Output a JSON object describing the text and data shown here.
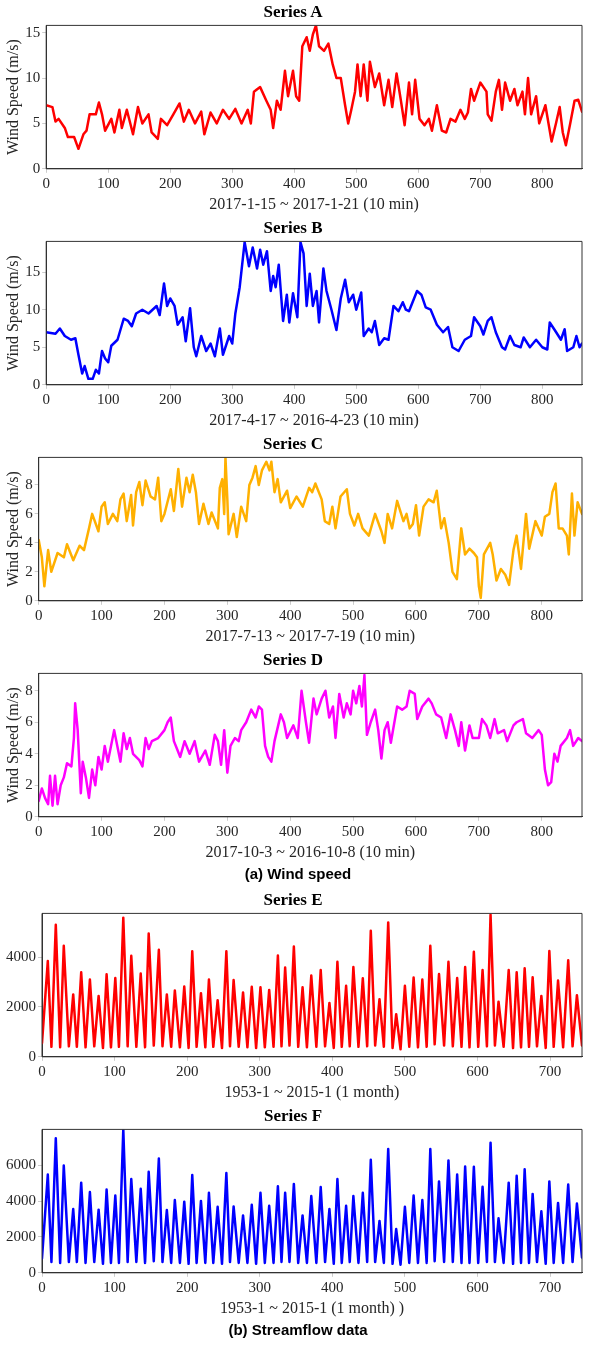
{
  "chart_data": [
    {
      "type": "line",
      "title": "Series A",
      "xlabel": "2017-1-15 ~ 2017-1-21 (10 min)",
      "ylabel": "Wind Speed (m/s)",
      "xlim": [
        0,
        864
      ],
      "xticks": [
        0,
        100,
        200,
        300,
        400,
        500,
        600,
        700,
        800
      ],
      "ylim": [
        0,
        15.8
      ],
      "yticks": [
        0,
        5,
        10,
        15
      ],
      "x": [
        0,
        10,
        15,
        20,
        30,
        35,
        45,
        52,
        60,
        65,
        70,
        80,
        85,
        90,
        95,
        105,
        110,
        118,
        122,
        130,
        140,
        148,
        155,
        165,
        170,
        180,
        185,
        195,
        205,
        215,
        222,
        230,
        240,
        250,
        255,
        265,
        275,
        285,
        295,
        305,
        315,
        325,
        330,
        335,
        345,
        355,
        362,
        366,
        372,
        378,
        385,
        390,
        398,
        403,
        408,
        413,
        420,
        425,
        430,
        435,
        440,
        448,
        455,
        462,
        468,
        475,
        482,
        487,
        492,
        498,
        502,
        507,
        512,
        518,
        522,
        530,
        537,
        545,
        552,
        558,
        565,
        572,
        578,
        585,
        590,
        595,
        602,
        610,
        617,
        622,
        630,
        638,
        645,
        652,
        660,
        668,
        675,
        680,
        685,
        690,
        700,
        710,
        712,
        718,
        725,
        730,
        735,
        740,
        748,
        755,
        760,
        768,
        772,
        777,
        782,
        790,
        795,
        805,
        810,
        815,
        822,
        828,
        833,
        838,
        845,
        852,
        858,
        864
      ],
      "series": [
        {
          "color": "#ff0000",
          "values": [
            7.0,
            6.8,
            5.2,
            5.5,
            4.5,
            3.5,
            3.5,
            2.2,
            3.8,
            4.2,
            6.0,
            6.0,
            7.3,
            6.0,
            4.2,
            5.5,
            4.0,
            6.5,
            4.5,
            6.5,
            3.8,
            6.8,
            5.0,
            6.0,
            4.0,
            3.3,
            5.5,
            4.8,
            6.0,
            7.2,
            5.2,
            6.5,
            5.0,
            6.3,
            3.8,
            6.2,
            5.0,
            6.5,
            5.5,
            6.6,
            5.0,
            6.5,
            5.0,
            8.5,
            9.0,
            7.5,
            6.5,
            4.5,
            7.5,
            6.5,
            10.8,
            8.0,
            10.8,
            8.0,
            7.5,
            13.5,
            14.5,
            13.0,
            14.8,
            15.8,
            13.5,
            13.0,
            13.8,
            11.5,
            10.0,
            10.0,
            7.0,
            5.0,
            6.5,
            8.5,
            11.5,
            8.0,
            11.5,
            7.5,
            11.8,
            9.0,
            10.5,
            7.0,
            9.8,
            6.8,
            10.5,
            7.5,
            4.8,
            9.5,
            6.0,
            9.8,
            5.5,
            4.8,
            5.5,
            4.2,
            7.0,
            4.2,
            4.0,
            5.5,
            5.2,
            6.5,
            5.5,
            6.2,
            8.8,
            7.5,
            9.5,
            8.5,
            6.0,
            5.3,
            8.5,
            9.8,
            6.5,
            9.5,
            7.5,
            8.8,
            7.0,
            8.5,
            6.0,
            10.0,
            6.0,
            8.0,
            5.0,
            7.0,
            5.0,
            3.0,
            5.0,
            6.8,
            4.0,
            2.6,
            5.0,
            7.5,
            7.6,
            6.3
          ]
        }
      ]
    },
    {
      "type": "line",
      "title": "Series B",
      "xlabel": "2017-4-17 ~ 2016-4-23 (10 min)",
      "ylabel": "Wind Speed (m/s)",
      "xlim": [
        0,
        864
      ],
      "xticks": [
        0,
        100,
        200,
        300,
        400,
        500,
        600,
        700,
        800
      ],
      "ylim": [
        0,
        19.1
      ],
      "yticks": [
        0,
        5,
        10,
        15
      ],
      "x": [
        0,
        15,
        22,
        30,
        40,
        47,
        52,
        58,
        62,
        68,
        75,
        80,
        85,
        90,
        95,
        100,
        105,
        115,
        125,
        132,
        138,
        145,
        155,
        165,
        178,
        183,
        190,
        195,
        200,
        207,
        212,
        220,
        225,
        232,
        238,
        242,
        250,
        258,
        265,
        272,
        280,
        285,
        295,
        300,
        305,
        312,
        320,
        327,
        333,
        340,
        345,
        350,
        356,
        362,
        366,
        370,
        375,
        382,
        388,
        392,
        398,
        405,
        410,
        415,
        420,
        425,
        430,
        436,
        440,
        447,
        452,
        460,
        468,
        475,
        482,
        488,
        495,
        500,
        508,
        512,
        520,
        525,
        530,
        537,
        545,
        552,
        560,
        568,
        575,
        580,
        585,
        598,
        605,
        612,
        620,
        630,
        640,
        648,
        655,
        665,
        675,
        685,
        690,
        700,
        705,
        712,
        718,
        725,
        735,
        740,
        748,
        755,
        765,
        770,
        780,
        790,
        800,
        808,
        812,
        820,
        830,
        836,
        840,
        850,
        855,
        860,
        864
      ],
      "series": [
        {
          "color": "#0000ff",
          "values": [
            7.0,
            6.8,
            7.5,
            6.5,
            6.0,
            6.2,
            4.0,
            1.5,
            2.5,
            0.8,
            0.8,
            2.0,
            1.5,
            4.5,
            3.5,
            3.0,
            5.2,
            6.0,
            8.8,
            8.5,
            7.8,
            9.5,
            10.0,
            9.5,
            10.5,
            9.3,
            13.5,
            10.5,
            11.5,
            10.5,
            8.0,
            9.0,
            5.8,
            10.2,
            5.0,
            3.8,
            6.5,
            4.5,
            5.5,
            3.8,
            7.5,
            4.0,
            6.5,
            5.5,
            9.5,
            13.0,
            19.0,
            15.8,
            18.3,
            15.5,
            18.0,
            16.0,
            17.8,
            12.5,
            14.5,
            13.0,
            16.0,
            8.5,
            12.0,
            8.3,
            12.2,
            9.0,
            19.0,
            17.5,
            10.5,
            14.8,
            10.5,
            12.5,
            8.3,
            15.5,
            12.5,
            10.0,
            7.3,
            11.5,
            14.0,
            11.0,
            12.0,
            10.0,
            12.3,
            6.5,
            7.5,
            7.0,
            8.5,
            5.3,
            6.2,
            6.0,
            10.5,
            9.8,
            11.0,
            10.0,
            9.8,
            12.5,
            12.0,
            10.3,
            10.0,
            8.0,
            7.0,
            7.7,
            5.0,
            4.5,
            6.0,
            6.5,
            9.0,
            7.8,
            6.7,
            8.5,
            9.0,
            7.0,
            5.0,
            4.7,
            6.5,
            5.3,
            5.0,
            6.3,
            5.0,
            6.0,
            5.0,
            4.7,
            8.3,
            7.3,
            6.0,
            7.4,
            4.5,
            5.0,
            6.5,
            5.0,
            5.5
          ]
        }
      ]
    },
    {
      "type": "line",
      "title": "Series C",
      "xlabel": "2017-7-13 ~ 2017-7-19 (10 min)",
      "ylabel": "Wind Speed (m/s)",
      "xlim": [
        0,
        864
      ],
      "xticks": [
        0,
        100,
        200,
        300,
        400,
        500,
        600,
        700,
        800
      ],
      "ylim": [
        0,
        9.9
      ],
      "yticks": [
        0,
        2,
        4,
        6,
        8
      ],
      "x": [
        0,
        5,
        9,
        15,
        20,
        30,
        40,
        45,
        55,
        65,
        72,
        80,
        85,
        95,
        100,
        105,
        110,
        118,
        125,
        130,
        135,
        140,
        147,
        150,
        155,
        160,
        165,
        170,
        178,
        185,
        190,
        195,
        200,
        210,
        215,
        222,
        228,
        235,
        240,
        245,
        250,
        255,
        262,
        270,
        275,
        285,
        288,
        292,
        295,
        297,
        300,
        302,
        310,
        315,
        322,
        330,
        335,
        340,
        345,
        350,
        355,
        362,
        367,
        370,
        375,
        380,
        385,
        395,
        400,
        410,
        420,
        430,
        435,
        440,
        450,
        455,
        462,
        467,
        472,
        480,
        490,
        495,
        502,
        508,
        515,
        525,
        535,
        545,
        550,
        555,
        562,
        570,
        580,
        585,
        590,
        595,
        600,
        605,
        612,
        620,
        628,
        633,
        640,
        645,
        652,
        658,
        665,
        672,
        678,
        685,
        692,
        697,
        700,
        703,
        708,
        718,
        722,
        728,
        735,
        742,
        748,
        755,
        760,
        767,
        775,
        780,
        790,
        800,
        805,
        812,
        817,
        822,
        827,
        833,
        840,
        843,
        848,
        852,
        857,
        864
      ],
      "series": [
        {
          "color": "#ffb000",
          "values": [
            4.2,
            3.0,
            1.0,
            3.5,
            2.0,
            3.3,
            3.0,
            3.9,
            2.8,
            3.8,
            3.5,
            5.0,
            6.0,
            4.8,
            6.5,
            6.8,
            5.3,
            6.0,
            5.5,
            7.0,
            7.4,
            5.5,
            7.3,
            5.2,
            7.5,
            8.2,
            6.6,
            8.3,
            7.2,
            7.0,
            8.5,
            5.5,
            6.0,
            7.7,
            6.2,
            9.1,
            6.5,
            8.5,
            7.5,
            8.7,
            7.5,
            5.3,
            6.7,
            5.3,
            6.1,
            5.0,
            7.8,
            8.4,
            6.0,
            9.9,
            7.0,
            4.6,
            6.0,
            4.4,
            6.5,
            5.5,
            8.0,
            8.5,
            9.3,
            8.0,
            9.0,
            9.6,
            9.0,
            9.6,
            7.5,
            8.4,
            6.8,
            7.6,
            6.4,
            7.2,
            6.5,
            7.8,
            7.5,
            8.1,
            7.0,
            5.5,
            5.3,
            6.5,
            5.0,
            7.2,
            7.7,
            6.0,
            5.2,
            6.0,
            5.0,
            4.5,
            6.0,
            4.8,
            4.0,
            6.0,
            5.0,
            6.9,
            5.5,
            6.0,
            5.0,
            5.3,
            6.6,
            4.5,
            6.5,
            7.0,
            6.8,
            7.6,
            5.0,
            5.7,
            4.0,
            2.0,
            1.5,
            5.0,
            3.2,
            3.6,
            3.3,
            3.0,
            1.0,
            0.2,
            3.2,
            4.0,
            3.2,
            1.4,
            2.2,
            1.8,
            1.1,
            3.5,
            4.5,
            2.2,
            6.0,
            3.6,
            5.5,
            4.5,
            5.8,
            6.0,
            7.5,
            8.1,
            5.0,
            5.0,
            4.5,
            3.2,
            7.4,
            4.5,
            6.8,
            6.0
          ]
        }
      ]
    },
    {
      "type": "line",
      "title": "Series D",
      "xlabel": "2017-10-3 ~ 2016-10-8 (10 min)",
      "ylabel": "Wind Speed (m/s)",
      "xlim": [
        0,
        864
      ],
      "xticks": [
        0,
        100,
        200,
        300,
        400,
        500,
        600,
        700,
        800
      ],
      "ylim": [
        0,
        9.1
      ],
      "yticks": [
        0,
        2,
        4,
        6,
        8
      ],
      "annotations": [
        "(a)  Wind speed"
      ],
      "x": [
        0,
        5,
        10,
        15,
        18,
        22,
        26,
        30,
        35,
        40,
        45,
        52,
        56,
        58,
        62,
        67,
        70,
        75,
        80,
        85,
        90,
        95,
        100,
        105,
        110,
        115,
        120,
        125,
        130,
        135,
        140,
        145,
        150,
        160,
        165,
        170,
        175,
        180,
        190,
        200,
        205,
        210,
        215,
        220,
        225,
        232,
        240,
        248,
        255,
        265,
        272,
        280,
        285,
        290,
        295,
        300,
        305,
        312,
        318,
        322,
        330,
        338,
        345,
        350,
        355,
        360,
        365,
        370,
        375,
        385,
        390,
        395,
        405,
        412,
        418,
        425,
        430,
        437,
        442,
        450,
        456,
        462,
        468,
        472,
        478,
        485,
        490,
        496,
        500,
        505,
        510,
        514,
        518,
        522,
        528,
        535,
        540,
        545,
        550,
        555,
        560,
        570,
        578,
        585,
        590,
        598,
        602,
        610,
        620,
        625,
        632,
        640,
        648,
        655,
        662,
        668,
        672,
        678,
        685,
        690,
        700,
        705,
        712,
        718,
        725,
        730,
        740,
        745,
        755,
        760,
        770,
        775,
        785,
        795,
        800,
        805,
        810,
        815,
        820,
        825,
        830,
        840,
        845,
        850,
        858,
        864
      ],
      "series": [
        {
          "color": "#ff00ff",
          "values": [
            1.0,
            1.8,
            1.2,
            0.8,
            2.6,
            0.7,
            2.6,
            0.8,
            2.0,
            2.5,
            3.4,
            3.2,
            5.0,
            7.2,
            5.5,
            1.5,
            3.5,
            2.5,
            1.2,
            3.0,
            2.0,
            3.8,
            3.0,
            4.5,
            3.5,
            4.5,
            5.5,
            4.5,
            3.5,
            5.3,
            4.3,
            5.0,
            4.0,
            3.6,
            3.2,
            5.0,
            4.3,
            4.8,
            5.0,
            5.5,
            6.0,
            6.3,
            4.8,
            4.3,
            3.8,
            4.8,
            4.0,
            4.8,
            3.5,
            4.2,
            3.3,
            5.2,
            4.8,
            3.3,
            5.5,
            2.8,
            4.5,
            5.0,
            4.8,
            5.5,
            6.0,
            6.8,
            6.3,
            7.0,
            6.8,
            4.5,
            3.8,
            3.5,
            4.8,
            6.5,
            6.0,
            5.0,
            5.8,
            5.0,
            8.0,
            6.0,
            4.7,
            7.5,
            6.5,
            7.5,
            8.0,
            6.3,
            7.0,
            5.0,
            7.8,
            6.3,
            7.2,
            6.5,
            8.0,
            7.2,
            8.3,
            7.0,
            9.0,
            5.2,
            6.0,
            6.8,
            5.5,
            3.7,
            5.5,
            6.0,
            4.7,
            7.0,
            6.8,
            7.0,
            8.0,
            7.8,
            6.2,
            7.0,
            7.5,
            7.2,
            6.5,
            6.3,
            5.0,
            6.5,
            5.5,
            4.5,
            6.0,
            4.2,
            5.8,
            5.0,
            5.0,
            6.2,
            5.8,
            5.0,
            6.2,
            5.3,
            5.5,
            4.8,
            5.8,
            6.0,
            6.2,
            5.3,
            5.0,
            5.5,
            5.2,
            3.0,
            2.0,
            2.2,
            4.0,
            3.5,
            4.5,
            5.0,
            5.5,
            4.5,
            5.0,
            4.8
          ]
        }
      ]
    },
    {
      "type": "line",
      "title": "Series E",
      "xlabel": "1953-1 ~ 2015-1 (1 month)",
      "xlim": [
        0,
        744
      ],
      "xticks": [
        0,
        100,
        200,
        300,
        400,
        500,
        600,
        700
      ],
      "ylim": [
        0,
        5750
      ],
      "yticks": [
        0,
        2000,
        4000
      ],
      "x": [
        0,
        8,
        13,
        19,
        25,
        30,
        37,
        43,
        48,
        54,
        60,
        66,
        72,
        78,
        84,
        89,
        95,
        101,
        106,
        112,
        118,
        123,
        130,
        136,
        142,
        147,
        154,
        161,
        166,
        172,
        178,
        183,
        190,
        196,
        202,
        207,
        213,
        219,
        225,
        230,
        236,
        242,
        248,
        254,
        259,
        264,
        271,
        277,
        283,
        289,
        295,
        301,
        307,
        313,
        319,
        325,
        330,
        335,
        341,
        347,
        353,
        359,
        365,
        371,
        378,
        384,
        390,
        396,
        402,
        407,
        413,
        419,
        424,
        429,
        436,
        442,
        448,
        453,
        459,
        465,
        471,
        477,
        483,
        488,
        494,
        500,
        506,
        512,
        518,
        524,
        530,
        535,
        541,
        547,
        554,
        560,
        566,
        572,
        578,
        583,
        589,
        595,
        601,
        607,
        613,
        618,
        624,
        629,
        636,
        643,
        649,
        654,
        660,
        665,
        671,
        676,
        682,
        688,
        694,
        699,
        705,
        711,
        718,
        725,
        731,
        737,
        744
      ],
      "series": [
        {
          "color": "#ff0000",
          "values": [
            550,
            3840,
            400,
            5290,
            380,
            4450,
            420,
            2500,
            400,
            3390,
            380,
            3100,
            420,
            2440,
            350,
            3310,
            380,
            3160,
            400,
            5580,
            420,
            4050,
            400,
            3340,
            380,
            4940,
            450,
            4290,
            420,
            2500,
            400,
            2660,
            380,
            2820,
            350,
            4230,
            400,
            2550,
            380,
            3100,
            400,
            2270,
            350,
            4230,
            420,
            3080,
            400,
            2580,
            380,
            2810,
            350,
            2790,
            380,
            2680,
            400,
            4060,
            420,
            3580,
            450,
            4420,
            400,
            2790,
            380,
            3260,
            400,
            3480,
            420,
            2160,
            350,
            3810,
            400,
            2850,
            420,
            3600,
            400,
            3150,
            420,
            5050,
            450,
            2310,
            400,
            5390,
            350,
            1710,
            300,
            2850,
            400,
            3180,
            380,
            3100,
            400,
            4450,
            500,
            3320,
            450,
            3810,
            420,
            3160,
            400,
            3600,
            380,
            4210,
            400,
            3480,
            420,
            5700,
            450,
            2210,
            400,
            3480,
            350,
            3390,
            380,
            3550,
            400,
            3190,
            420,
            2440,
            350,
            4240,
            400,
            3060,
            380,
            3870,
            420,
            2470,
            450
          ]
        }
      ]
    },
    {
      "type": "line",
      "title": "Series F",
      "xlabel": "1953-1 ~ 2015-1 (1 month) )",
      "xlim": [
        0,
        744
      ],
      "xticks": [
        0,
        100,
        200,
        300,
        400,
        500,
        600,
        700
      ],
      "ylim": [
        0,
        8000
      ],
      "yticks": [
        0,
        2000,
        4000,
        6000
      ],
      "annotations": [
        "(b)  Streamflow data"
      ],
      "x": [
        0,
        8,
        13,
        19,
        25,
        30,
        37,
        43,
        48,
        54,
        60,
        66,
        72,
        78,
        84,
        89,
        95,
        101,
        106,
        112,
        118,
        123,
        130,
        136,
        142,
        147,
        154,
        161,
        166,
        172,
        178,
        183,
        190,
        196,
        202,
        207,
        213,
        219,
        225,
        230,
        236,
        242,
        248,
        254,
        259,
        264,
        271,
        277,
        283,
        289,
        295,
        301,
        307,
        313,
        319,
        325,
        330,
        335,
        341,
        347,
        353,
        359,
        365,
        371,
        378,
        384,
        390,
        396,
        402,
        407,
        413,
        419,
        424,
        429,
        436,
        442,
        448,
        453,
        459,
        465,
        471,
        477,
        483,
        488,
        494,
        500,
        506,
        512,
        518,
        524,
        530,
        535,
        541,
        547,
        554,
        560,
        566,
        572,
        578,
        583,
        589,
        595,
        601,
        607,
        613,
        618,
        624,
        629,
        636,
        643,
        649,
        654,
        660,
        665,
        671,
        676,
        682,
        688,
        694,
        699,
        705,
        711,
        718,
        725,
        731,
        737,
        744
      ],
      "series": [
        {
          "color": "#0000ff",
          "values": [
            800,
            5480,
            600,
            7510,
            550,
            5980,
            600,
            3560,
            600,
            5030,
            550,
            4510,
            600,
            3520,
            500,
            4650,
            550,
            4310,
            550,
            8000,
            600,
            5230,
            600,
            4690,
            550,
            5640,
            650,
            6380,
            600,
            3500,
            550,
            4060,
            550,
            3970,
            500,
            5460,
            550,
            4010,
            550,
            4460,
            550,
            3680,
            500,
            5570,
            600,
            3700,
            550,
            3200,
            550,
            3790,
            500,
            4460,
            550,
            3740,
            550,
            4830,
            600,
            4460,
            600,
            4960,
            550,
            3200,
            550,
            4280,
            550,
            4780,
            600,
            3560,
            500,
            5230,
            550,
            3740,
            600,
            4280,
            550,
            4460,
            600,
            6310,
            600,
            2890,
            550,
            6900,
            500,
            2440,
            450,
            3680,
            550,
            4310,
            550,
            4060,
            550,
            6900,
            650,
            5100,
            600,
            6270,
            600,
            5480,
            550,
            5930,
            550,
            5910,
            550,
            4800,
            600,
            7260,
            600,
            3040,
            550,
            5030,
            500,
            5410,
            550,
            5770,
            550,
            4400,
            600,
            3430,
            500,
            5100,
            550,
            3900,
            550,
            4920,
            600,
            3860,
            850
          ]
        }
      ]
    }
  ]
}
